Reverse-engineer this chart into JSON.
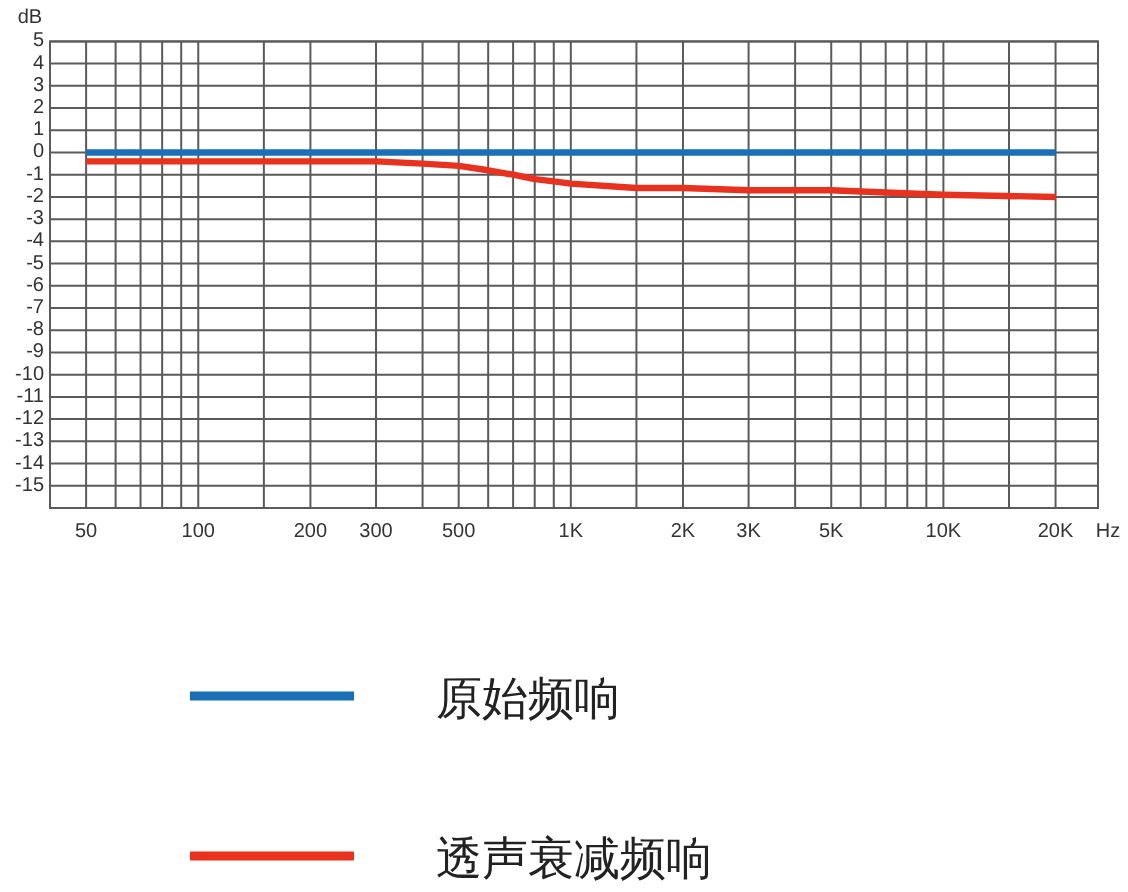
{
  "chart_data": {
    "type": "line",
    "xlabel": "Hz",
    "ylabel": "dB",
    "log": "x",
    "xlim": [
      40,
      26000
    ],
    "ylim": [
      -16,
      5
    ],
    "xticks": [
      50,
      {
        "value": 60,
        "label": null
      },
      {
        "value": 70,
        "label": null
      },
      {
        "value": 80,
        "label": null
      },
      {
        "value": 90,
        "label": null
      },
      100,
      {
        "value": 150,
        "label": null
      },
      200,
      300,
      {
        "value": 400,
        "label": null
      },
      500,
      {
        "value": 600,
        "label": null
      },
      {
        "value": 700,
        "label": null
      },
      {
        "value": 800,
        "label": null
      },
      {
        "value": 900,
        "label": null
      },
      {
        "value": 1000,
        "label": "1K"
      },
      {
        "value": 1500,
        "label": null
      },
      {
        "value": 2000,
        "label": "2K"
      },
      {
        "value": 3000,
        "label": "3K"
      },
      {
        "value": 4000,
        "label": null
      },
      {
        "value": 5000,
        "label": "5K"
      },
      {
        "value": 6000,
        "label": null
      },
      {
        "value": 7000,
        "label": null
      },
      {
        "value": 8000,
        "label": null
      },
      {
        "value": 9000,
        "label": null
      },
      {
        "value": 10000,
        "label": "10K"
      },
      {
        "value": 15000,
        "label": null
      },
      {
        "value": 20000,
        "label": "20K"
      }
    ],
    "yticks": [
      5,
      4,
      3,
      2,
      1,
      0,
      -1,
      -2,
      -3,
      -4,
      -5,
      -6,
      -7,
      -8,
      -9,
      -10,
      -11,
      -12,
      -13,
      -14,
      -15
    ],
    "grid": true,
    "legend": "bottom",
    "series": [
      {
        "name": "原始频响",
        "color": "#1b6fb6",
        "x": [
          50,
          20000
        ],
        "values": [
          0,
          0
        ]
      },
      {
        "name": "透声衰减频响",
        "color": "#e6321e",
        "x": [
          50,
          100,
          200,
          300,
          400,
          500,
          600,
          700,
          800,
          900,
          1000,
          1500,
          2000,
          3000,
          5000,
          7000,
          10000,
          20000
        ],
        "values": [
          -0.4,
          -0.4,
          -0.4,
          -0.4,
          -0.5,
          -0.6,
          -0.8,
          -1.0,
          -1.2,
          -1.3,
          -1.4,
          -1.6,
          -1.6,
          -1.7,
          -1.7,
          -1.8,
          -1.9,
          -2.0
        ]
      }
    ]
  }
}
